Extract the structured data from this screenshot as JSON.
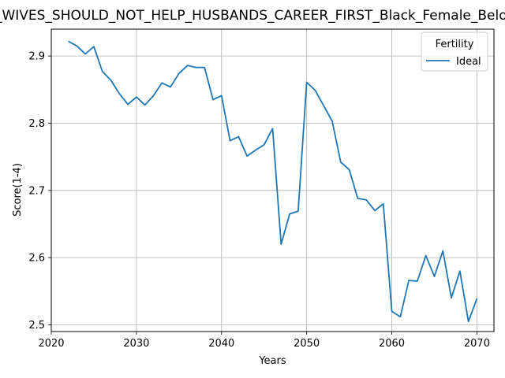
{
  "chart_data": {
    "type": "line",
    "title": "e_WIVES_SHOULD_NOT_HELP_HUSBANDS_CAREER_FIRST_Black_Female_Below",
    "xlabel": "Years",
    "ylabel": "Score(1-4)",
    "xlim": [
      2020,
      2072
    ],
    "ylim": [
      2.49,
      2.94
    ],
    "xticks": [
      2020,
      2030,
      2040,
      2050,
      2060,
      2070
    ],
    "yticks": [
      2.5,
      2.6,
      2.7,
      2.8,
      2.9
    ],
    "ytick_labels": [
      "2.5",
      "2.6",
      "2.7",
      "2.8",
      "2.9"
    ],
    "grid": true,
    "legend": {
      "title": "Fertility",
      "position": "top-right"
    },
    "series": [
      {
        "name": "Ideal",
        "color": "#1f77b4",
        "x": [
          2022,
          2023,
          2024,
          2025,
          2026,
          2027,
          2028,
          2029,
          2030,
          2031,
          2032,
          2033,
          2034,
          2035,
          2036,
          2037,
          2038,
          2039,
          2040,
          2041,
          2042,
          2043,
          2044,
          2045,
          2046,
          2047,
          2048,
          2049,
          2050,
          2051,
          2052,
          2053,
          2054,
          2055,
          2056,
          2057,
          2058,
          2059,
          2060,
          2061,
          2062,
          2063,
          2064,
          2065,
          2066,
          2067,
          2068,
          2069,
          2070
        ],
        "y": [
          2.922,
          2.915,
          2.903,
          2.914,
          2.877,
          2.864,
          2.844,
          2.828,
          2.839,
          2.827,
          2.841,
          2.86,
          2.854,
          2.874,
          2.886,
          2.883,
          2.883,
          2.835,
          2.841,
          2.774,
          2.78,
          2.751,
          2.76,
          2.768,
          2.792,
          2.62,
          2.665,
          2.669,
          2.861,
          2.849,
          2.826,
          2.803,
          2.742,
          2.731,
          2.688,
          2.686,
          2.67,
          2.68,
          2.52,
          2.512,
          2.566,
          2.565,
          2.603,
          2.572,
          2.61,
          2.54,
          2.58,
          2.505,
          2.539
        ]
      }
    ]
  }
}
